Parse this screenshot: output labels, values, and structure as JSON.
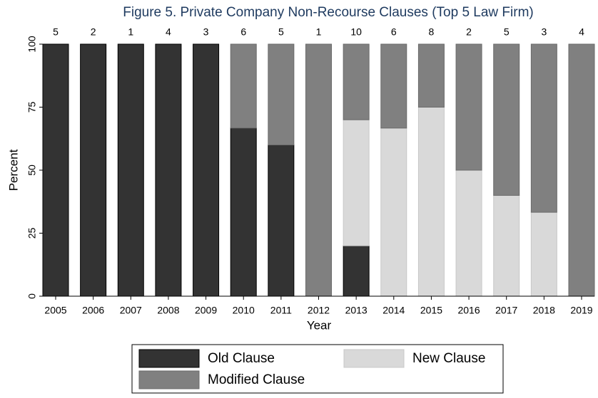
{
  "chart_data": {
    "type": "stacked_bar",
    "title": "Figure 5. Private Company Non-Recourse Clauses (Top 5 Law Firm)",
    "x_label": "Year",
    "y_label": "Percent",
    "categories": [
      "2005",
      "2006",
      "2007",
      "2008",
      "2009",
      "2010",
      "2011",
      "2012",
      "2013",
      "2014",
      "2015",
      "2016",
      "2017",
      "2018",
      "2019"
    ],
    "counts": [
      5,
      2,
      1,
      4,
      3,
      6,
      5,
      1,
      10,
      6,
      8,
      2,
      5,
      3,
      4
    ],
    "series": [
      {
        "name": "Old Clause",
        "color": "#333333",
        "values": [
          100,
          100,
          100,
          100,
          100,
          66.7,
          60,
          0,
          20,
          0,
          0,
          0,
          0,
          0,
          0
        ]
      },
      {
        "name": "New Clause",
        "color": "#d9d9d9",
        "values": [
          0,
          0,
          0,
          0,
          0,
          0,
          0,
          0,
          50,
          66.7,
          75,
          50,
          40,
          33.3,
          0
        ]
      },
      {
        "name": "Modified Clause",
        "color": "#808080",
        "values": [
          0,
          0,
          0,
          0,
          0,
          33.3,
          40,
          100,
          30,
          33.3,
          25,
          50,
          60,
          66.7,
          100
        ]
      }
    ],
    "ylim": [
      0,
      100
    ],
    "yticks": [
      0,
      25,
      50,
      75,
      100
    ],
    "legend": "bottom"
  }
}
